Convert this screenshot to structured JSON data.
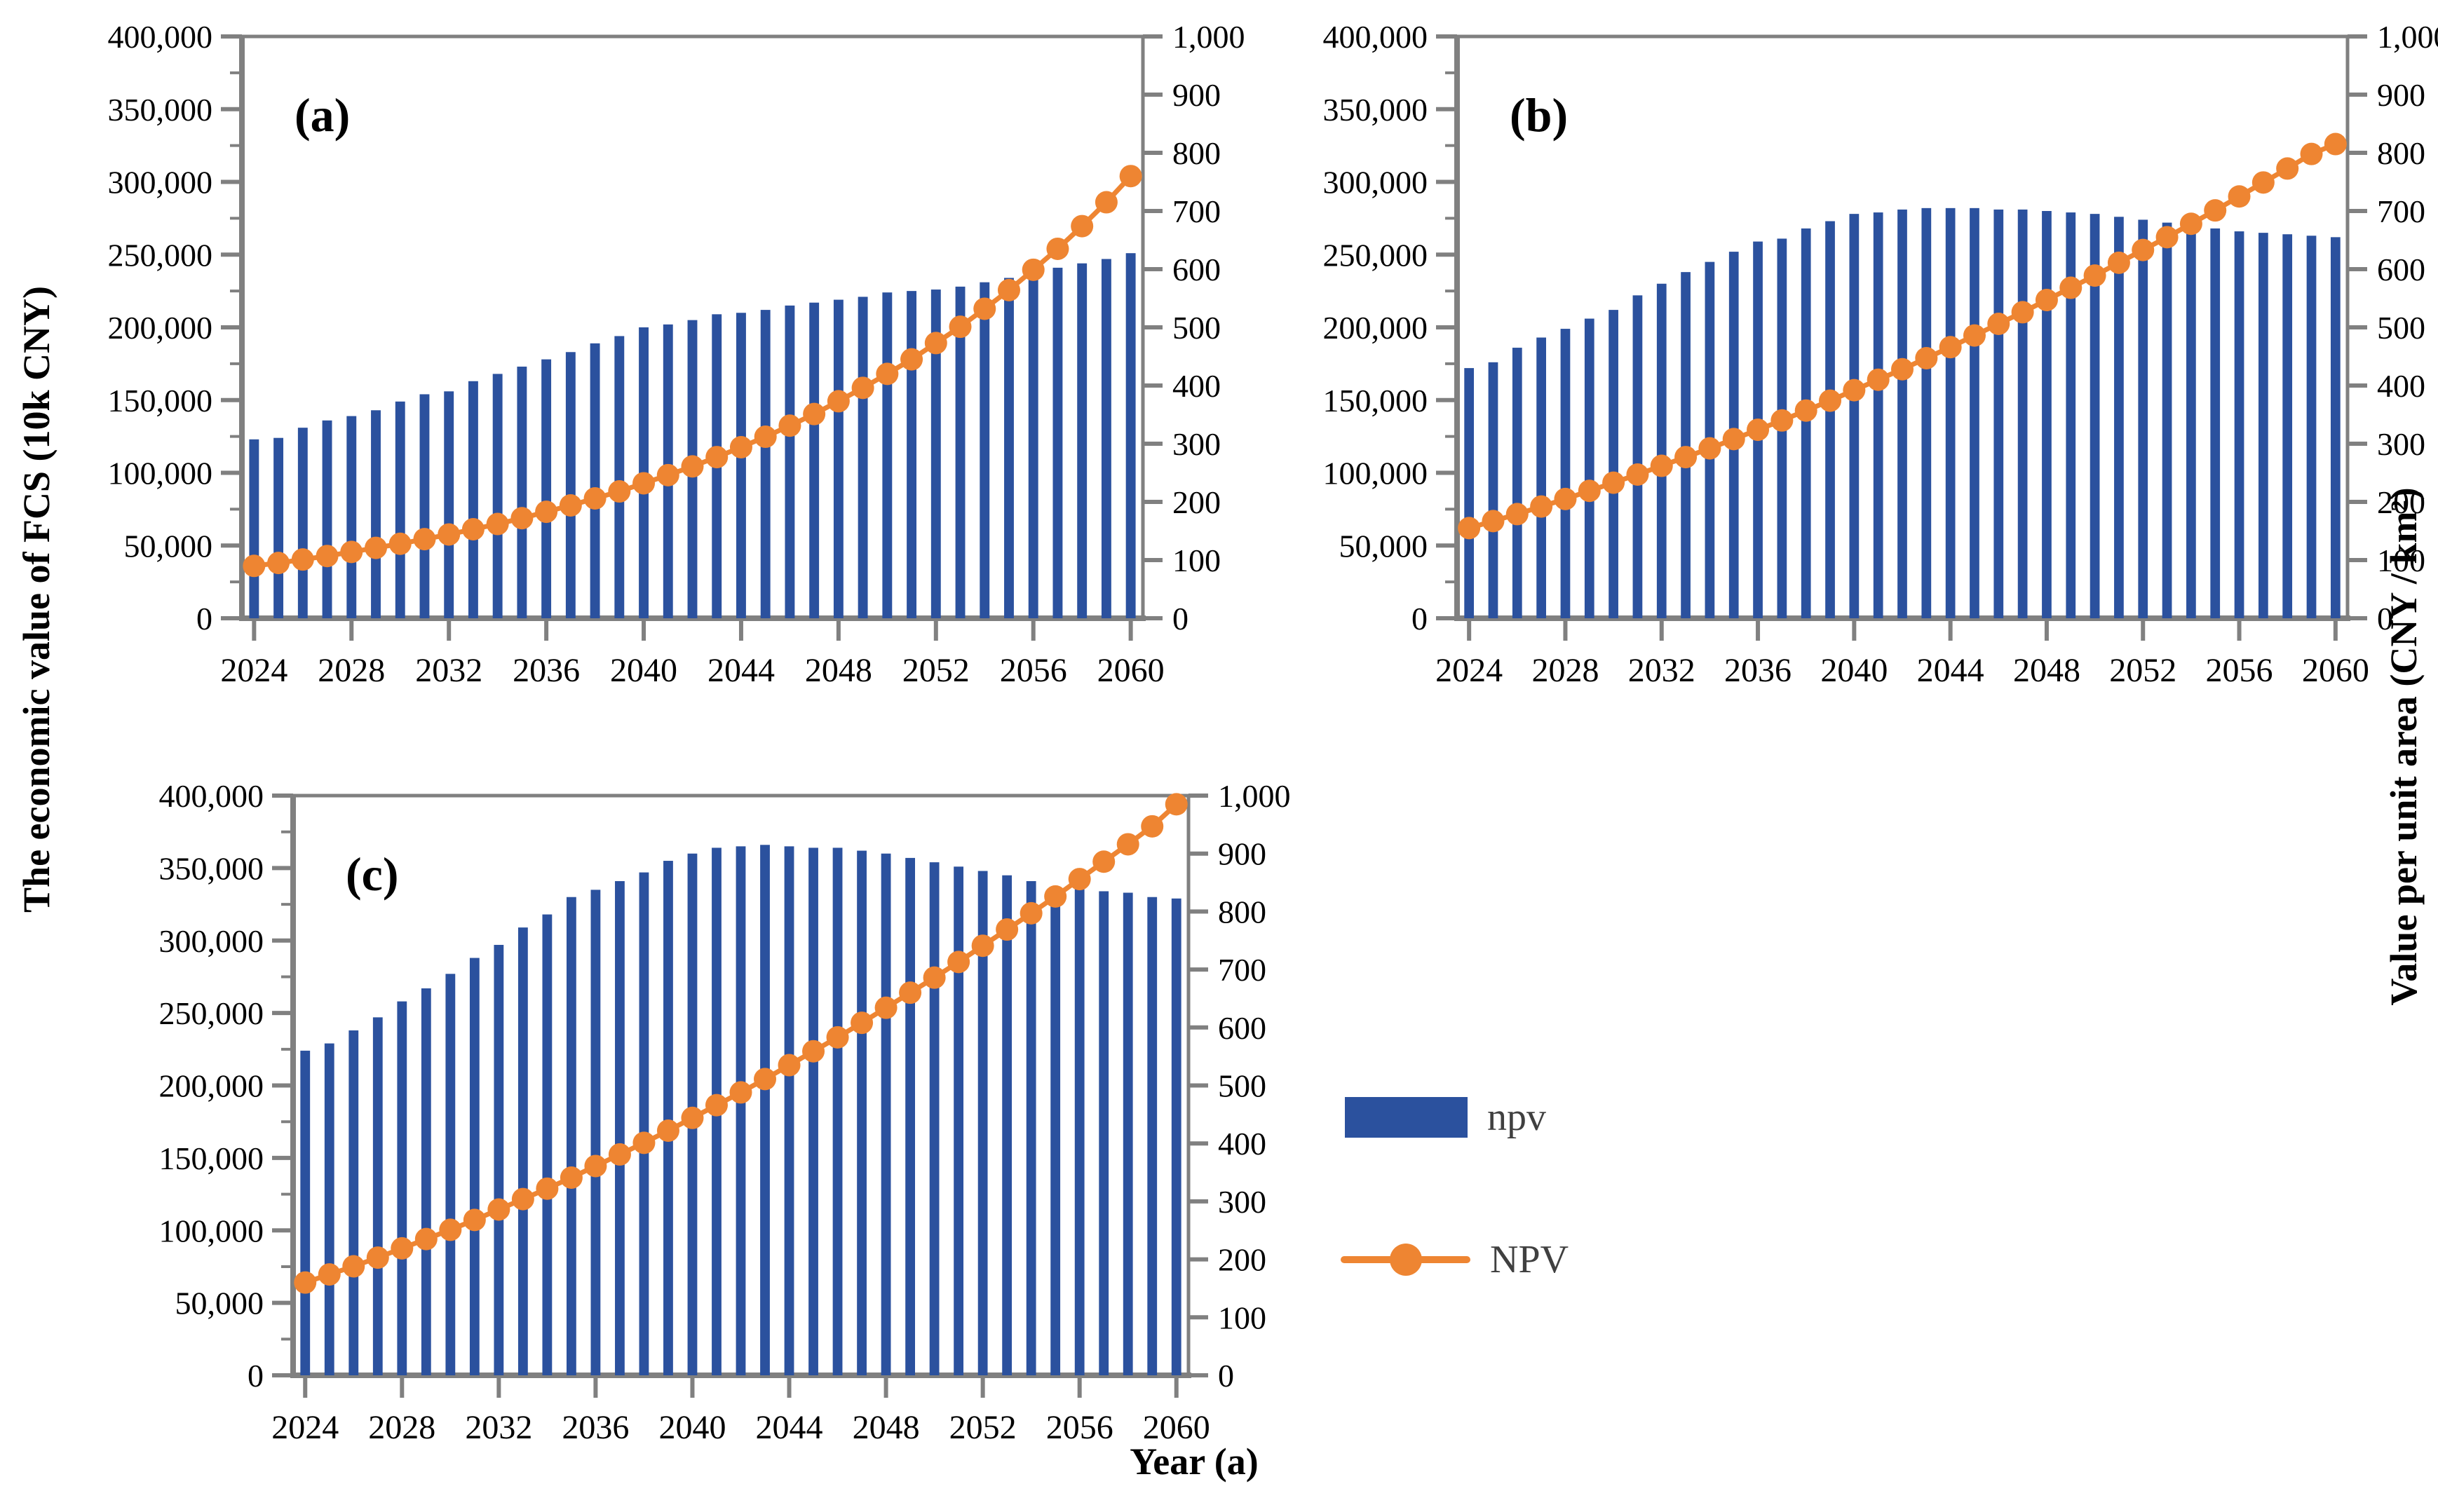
{
  "figure": {
    "x_axis_title": "Year (a)",
    "left_axis_title": "The economic value of FCS (10k CNY)",
    "right_axis_title": "Value per unit area (CNY / km²)"
  },
  "legend": {
    "bar_label": "npv",
    "line_label": "NPV"
  },
  "colors": {
    "bar": "#2b519e",
    "line": "#ee8532",
    "axis": "#808080",
    "text": "#000000",
    "legend_text": "#404040"
  },
  "chart_data": [
    {
      "type": "bar",
      "panel_label": "(a)",
      "x": [
        2024,
        2025,
        2026,
        2027,
        2028,
        2029,
        2030,
        2031,
        2032,
        2033,
        2034,
        2035,
        2036,
        2037,
        2038,
        2039,
        2040,
        2041,
        2042,
        2043,
        2044,
        2045,
        2046,
        2047,
        2048,
        2049,
        2050,
        2051,
        2052,
        2053,
        2054,
        2055,
        2056,
        2057,
        2058,
        2059,
        2060
      ],
      "x_tick_labels": [
        "2024",
        "2028",
        "2032",
        "2036",
        "2040",
        "2044",
        "2048",
        "2052",
        "2056",
        "2060"
      ],
      "left_axis": {
        "min": 0,
        "max": 400000,
        "major_step": 50000,
        "minor_step": 25000
      },
      "right_axis": {
        "min": 0,
        "max": 1000,
        "major_step": 100
      },
      "series": [
        {
          "name": "npv",
          "type": "bar",
          "axis": "left",
          "values": [
            123000,
            124000,
            131000,
            136000,
            139000,
            143000,
            149000,
            154000,
            156000,
            163000,
            168000,
            173000,
            178000,
            183000,
            189000,
            194000,
            200000,
            202000,
            205000,
            209000,
            210000,
            212000,
            215000,
            217000,
            219000,
            221000,
            224000,
            225000,
            226000,
            228000,
            231000,
            234000,
            238000,
            241000,
            244000,
            247000,
            251000
          ]
        },
        {
          "name": "NPV",
          "type": "line",
          "axis": "right",
          "values": [
            90,
            95,
            101,
            107,
            114,
            121,
            128,
            136,
            144,
            153,
            162,
            172,
            183,
            194,
            206,
            218,
            232,
            246,
            261,
            277,
            294,
            312,
            331,
            351,
            373,
            396,
            420,
            445,
            473,
            501,
            532,
            564,
            599,
            635,
            674,
            715,
            760
          ]
        }
      ]
    },
    {
      "type": "bar",
      "panel_label": "(b)",
      "x": [
        2024,
        2025,
        2026,
        2027,
        2028,
        2029,
        2030,
        2031,
        2032,
        2033,
        2034,
        2035,
        2036,
        2037,
        2038,
        2039,
        2040,
        2041,
        2042,
        2043,
        2044,
        2045,
        2046,
        2047,
        2048,
        2049,
        2050,
        2051,
        2052,
        2053,
        2054,
        2055,
        2056,
        2057,
        2058,
        2059,
        2060
      ],
      "x_tick_labels": [
        "2024",
        "2028",
        "2032",
        "2036",
        "2040",
        "2044",
        "2048",
        "2052",
        "2056",
        "2060"
      ],
      "left_axis": {
        "min": 0,
        "max": 400000,
        "major_step": 50000,
        "minor_step": 25000
      },
      "right_axis": {
        "min": 0,
        "max": 1000,
        "major_step": 100
      },
      "series": [
        {
          "name": "npv",
          "type": "bar",
          "axis": "left",
          "values": [
            172000,
            176000,
            186000,
            193000,
            199000,
            206000,
            212000,
            222000,
            230000,
            238000,
            245000,
            252000,
            259000,
            261000,
            268000,
            273000,
            278000,
            279000,
            281000,
            282000,
            282000,
            282000,
            281000,
            281000,
            280000,
            279000,
            278000,
            276000,
            274000,
            272000,
            270000,
            268000,
            266000,
            265000,
            264000,
            263000,
            262000
          ]
        },
        {
          "name": "NPV",
          "type": "line",
          "axis": "right",
          "values": [
            155,
            167,
            179,
            192,
            205,
            219,
            233,
            247,
            262,
            277,
            292,
            308,
            324,
            340,
            357,
            374,
            392,
            410,
            428,
            447,
            466,
            486,
            506,
            526,
            547,
            568,
            589,
            611,
            633,
            655,
            678,
            701,
            725,
            749,
            773,
            798,
            815
          ]
        }
      ]
    },
    {
      "type": "bar",
      "panel_label": "(c)",
      "x": [
        2024,
        2025,
        2026,
        2027,
        2028,
        2029,
        2030,
        2031,
        2032,
        2033,
        2034,
        2035,
        2036,
        2037,
        2038,
        2039,
        2040,
        2041,
        2042,
        2043,
        2044,
        2045,
        2046,
        2047,
        2048,
        2049,
        2050,
        2051,
        2052,
        2053,
        2054,
        2055,
        2056,
        2057,
        2058,
        2059,
        2060
      ],
      "x_tick_labels": [
        "2024",
        "2028",
        "2032",
        "2036",
        "2040",
        "2044",
        "2048",
        "2052",
        "2056",
        "2060"
      ],
      "left_axis": {
        "min": 0,
        "max": 400000,
        "major_step": 50000,
        "minor_step": 25000
      },
      "right_axis": {
        "min": 0,
        "max": 1000,
        "major_step": 100
      },
      "series": [
        {
          "name": "npv",
          "type": "bar",
          "axis": "left",
          "values": [
            224000,
            229000,
            238000,
            247000,
            258000,
            267000,
            277000,
            288000,
            297000,
            309000,
            318000,
            330000,
            335000,
            341000,
            347000,
            355000,
            360000,
            364000,
            365000,
            366000,
            365000,
            364000,
            364000,
            362000,
            360000,
            357000,
            354000,
            351000,
            348000,
            345000,
            341000,
            337000,
            336000,
            334000,
            333000,
            330000,
            329000
          ]
        },
        {
          "name": "NPV",
          "type": "line",
          "axis": "right",
          "values": [
            160,
            174,
            188,
            203,
            219,
            235,
            251,
            268,
            286,
            304,
            322,
            341,
            361,
            381,
            401,
            422,
            444,
            466,
            488,
            511,
            535,
            559,
            583,
            608,
            634,
            660,
            686,
            713,
            741,
            769,
            797,
            826,
            856,
            886,
            916,
            947,
            985
          ]
        }
      ]
    }
  ]
}
